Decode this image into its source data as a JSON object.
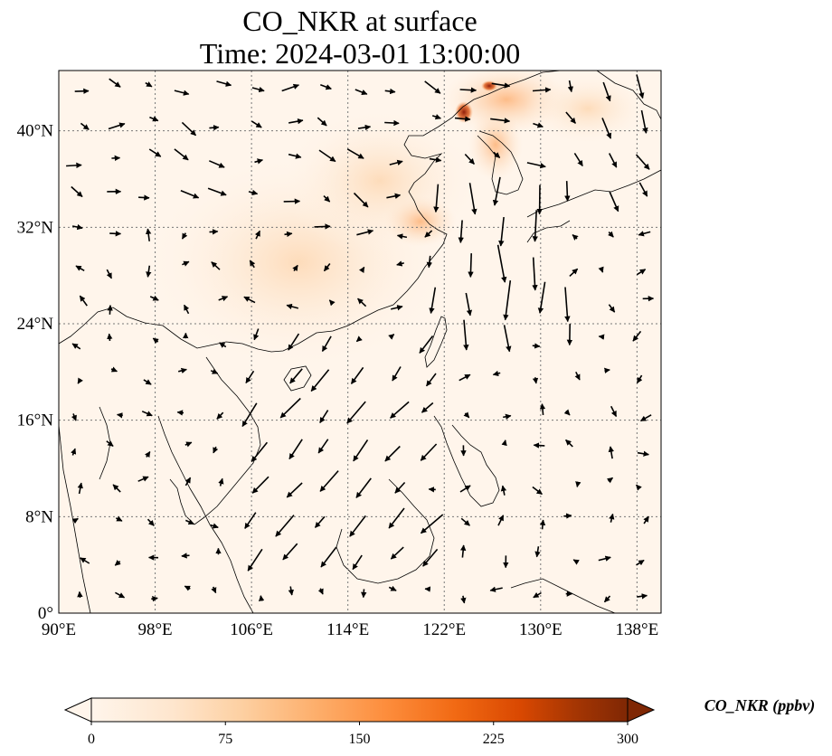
{
  "title": {
    "line1": "CO_NKR at surface",
    "line2": "Time: 2024-03-01 13:00:00"
  },
  "map": {
    "lon_range": [
      90,
      140
    ],
    "lat_range": [
      0,
      45
    ],
    "lon_ticks": [
      90,
      98,
      106,
      114,
      122,
      130,
      138
    ],
    "lat_ticks": [
      0,
      8,
      16,
      24,
      32,
      40
    ],
    "lon_labels": [
      "90°E",
      "98°E",
      "106°E",
      "114°E",
      "122°E",
      "130°E",
      "138°E"
    ],
    "lat_labels": [
      "0°",
      "8°N",
      "16°N",
      "24°N",
      "32°N",
      "40°N"
    ],
    "gridlines": true,
    "background_color": "#fff5eb",
    "coastline_color": "#000000"
  },
  "colorbar": {
    "title": "CO_NKR (ppbv)",
    "range": [
      0,
      300
    ],
    "ticks": [
      0,
      75,
      150,
      225,
      300
    ],
    "tick_labels": [
      "0",
      "75",
      "150",
      "225",
      "300"
    ],
    "colormap": "OrRd",
    "extend": "both",
    "stops": [
      "#fff5eb",
      "#fee6ce",
      "#fdd0a2",
      "#fdae6b",
      "#fd8d3c",
      "#f16913",
      "#d94801",
      "#a63603",
      "#7f2704"
    ]
  }
}
